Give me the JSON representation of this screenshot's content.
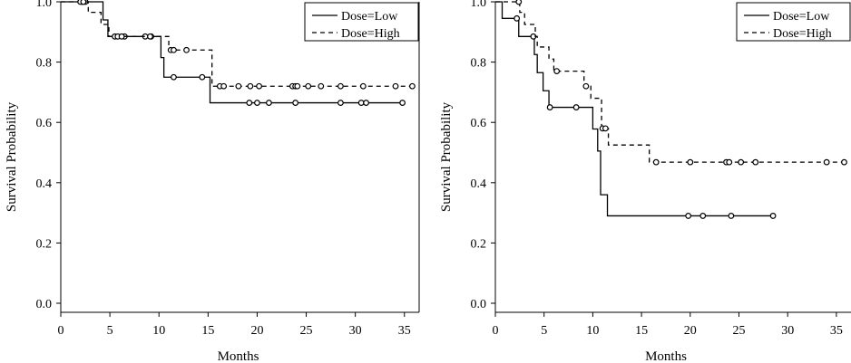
{
  "chart_data": [
    {
      "type": "line",
      "xlabel": "Months",
      "ylabel": "Survival Probability",
      "xlim": [
        0,
        36.5
      ],
      "ylim": [
        -0.03,
        1.0
      ],
      "xticks": [
        0,
        5,
        10,
        15,
        20,
        25,
        30,
        35
      ],
      "yticks": [
        0.0,
        0.2,
        0.4,
        0.6,
        0.8,
        1.0
      ],
      "xtick_labels": [
        "0",
        "5",
        "10",
        "15",
        "20",
        "25",
        "30",
        "35"
      ],
      "ytick_labels": [
        "0.0",
        "0.2",
        "0.4",
        "0.6",
        "0.8",
        "1.0"
      ],
      "legend_position": "top-right",
      "series": [
        {
          "name": "Dose=Low",
          "style": "solid",
          "color": "#000000",
          "steps": [
            [
              0,
              1.0
            ],
            [
              4.3,
              0.94
            ],
            [
              4.8,
              0.885
            ],
            [
              10.2,
              0.815
            ],
            [
              10.5,
              0.75
            ],
            [
              15.2,
              0.665
            ],
            [
              34.8,
              0.665
            ]
          ],
          "censored": [
            [
              2.2,
              1.0
            ],
            [
              2.5,
              1.0
            ],
            [
              5.5,
              0.885
            ],
            [
              6.5,
              0.885
            ],
            [
              8.6,
              0.885
            ],
            [
              9.2,
              0.885
            ],
            [
              11.5,
              0.75
            ],
            [
              14.4,
              0.75
            ],
            [
              19.2,
              0.665
            ],
            [
              20.0,
              0.665
            ],
            [
              21.2,
              0.665
            ],
            [
              23.9,
              0.665
            ],
            [
              28.5,
              0.665
            ],
            [
              30.6,
              0.665
            ],
            [
              31.1,
              0.665
            ],
            [
              34.8,
              0.665
            ]
          ]
        },
        {
          "name": "Dose=High",
          "style": "dashed",
          "color": "#000000",
          "steps": [
            [
              0,
              1.0
            ],
            [
              2.8,
              0.965
            ],
            [
              4.1,
              0.925
            ],
            [
              4.9,
              0.885
            ],
            [
              11.0,
              0.84
            ],
            [
              15.4,
              0.72
            ],
            [
              35.8,
              0.72
            ]
          ],
          "censored": [
            [
              2.0,
              1.0
            ],
            [
              2.3,
              1.0
            ],
            [
              5.8,
              0.885
            ],
            [
              6.2,
              0.885
            ],
            [
              9.1,
              0.885
            ],
            [
              11.2,
              0.84
            ],
            [
              11.5,
              0.84
            ],
            [
              12.8,
              0.84
            ],
            [
              16.2,
              0.72
            ],
            [
              16.6,
              0.72
            ],
            [
              18.1,
              0.72
            ],
            [
              19.3,
              0.72
            ],
            [
              20.2,
              0.72
            ],
            [
              23.6,
              0.72
            ],
            [
              23.9,
              0.72
            ],
            [
              24.1,
              0.72
            ],
            [
              25.2,
              0.72
            ],
            [
              26.5,
              0.72
            ],
            [
              28.5,
              0.72
            ],
            [
              30.8,
              0.72
            ],
            [
              34.1,
              0.72
            ],
            [
              35.8,
              0.72
            ]
          ]
        }
      ]
    },
    {
      "type": "line",
      "xlabel": "Months",
      "ylabel": "Survival Probability",
      "xlim": [
        0,
        36.5
      ],
      "ylim": [
        -0.03,
        1.0
      ],
      "xticks": [
        0,
        5,
        10,
        15,
        20,
        25,
        30,
        35
      ],
      "yticks": [
        0.0,
        0.2,
        0.4,
        0.6,
        0.8,
        1.0
      ],
      "xtick_labels": [
        "0",
        "5",
        "10",
        "15",
        "20",
        "25",
        "30",
        "35"
      ],
      "ytick_labels": [
        "0.0",
        "0.2",
        "0.4",
        "0.6",
        "0.8",
        "1.0"
      ],
      "legend_position": "top-right",
      "series": [
        {
          "name": "Dose=Low",
          "style": "solid",
          "color": "#000000",
          "steps": [
            [
              0,
              1.0
            ],
            [
              0.7,
              0.945
            ],
            [
              2.4,
              0.885
            ],
            [
              4.0,
              0.825
            ],
            [
              4.3,
              0.765
            ],
            [
              4.9,
              0.705
            ],
            [
              5.5,
              0.65
            ],
            [
              10.0,
              0.578
            ],
            [
              10.5,
              0.505
            ],
            [
              10.8,
              0.36
            ],
            [
              11.5,
              0.29
            ],
            [
              28.5,
              0.29
            ]
          ],
          "censored": [
            [
              2.2,
              0.945
            ],
            [
              3.9,
              0.885
            ],
            [
              5.6,
              0.65
            ],
            [
              8.3,
              0.65
            ],
            [
              19.8,
              0.29
            ],
            [
              21.3,
              0.29
            ],
            [
              24.2,
              0.29
            ],
            [
              28.5,
              0.29
            ]
          ]
        },
        {
          "name": "Dose=High",
          "style": "dashed",
          "color": "#000000",
          "steps": [
            [
              0,
              1.0
            ],
            [
              2.5,
              0.965
            ],
            [
              3.0,
              0.925
            ],
            [
              4.1,
              0.885
            ],
            [
              4.3,
              0.85
            ],
            [
              5.5,
              0.81
            ],
            [
              6.0,
              0.77
            ],
            [
              9.1,
              0.72
            ],
            [
              9.8,
              0.68
            ],
            [
              10.9,
              0.58
            ],
            [
              11.6,
              0.525
            ],
            [
              15.8,
              0.468
            ],
            [
              35.8,
              0.468
            ]
          ],
          "censored": [
            [
              2.4,
              1.0
            ],
            [
              6.3,
              0.77
            ],
            [
              9.3,
              0.72
            ],
            [
              11.0,
              0.58
            ],
            [
              11.3,
              0.58
            ],
            [
              16.5,
              0.468
            ],
            [
              20.0,
              0.468
            ],
            [
              23.7,
              0.468
            ],
            [
              24.0,
              0.468
            ],
            [
              25.2,
              0.468
            ],
            [
              26.7,
              0.468
            ],
            [
              34.0,
              0.468
            ],
            [
              35.8,
              0.468
            ]
          ]
        }
      ]
    }
  ]
}
